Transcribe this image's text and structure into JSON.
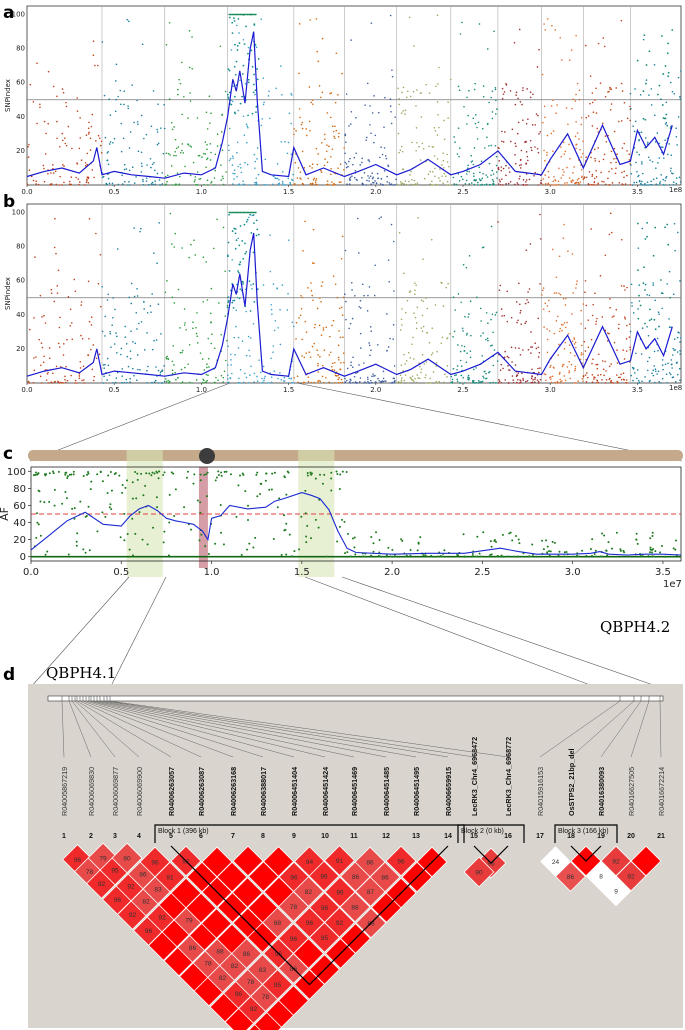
{
  "panel_labels": {
    "a": "a",
    "b": "b",
    "c": "c",
    "d": "d"
  },
  "chart_data": [
    {
      "panel": "a",
      "type": "scatter",
      "ylabel": "SNPindex",
      "ylim": [
        0,
        105
      ],
      "xlim": [
        0,
        3.75
      ],
      "x_ticks": [
        "0.0",
        "0.5",
        "1.0",
        "1.5",
        "2.0",
        "2.5",
        "3.0",
        "3.5"
      ],
      "y_ticks": [
        "20",
        "40",
        "60",
        "80",
        "100"
      ],
      "x_exponent_label": "1e8",
      "threshold": 50,
      "chromosome_boundaries": [
        0.43,
        0.79,
        1.15,
        1.53,
        1.82,
        2.12,
        2.43,
        2.7,
        2.95,
        3.19,
        3.46
      ],
      "line_series": {
        "x": [
          0,
          0.1,
          0.2,
          0.3,
          0.38,
          0.4,
          0.43,
          0.5,
          0.6,
          0.7,
          0.79,
          0.9,
          1.0,
          1.08,
          1.12,
          1.15,
          1.18,
          1.2,
          1.22,
          1.25,
          1.28,
          1.3,
          1.32,
          1.35,
          1.4,
          1.5,
          1.53,
          1.6,
          1.7,
          1.82,
          1.9,
          2.0,
          2.12,
          2.2,
          2.3,
          2.43,
          2.5,
          2.6,
          2.7,
          2.8,
          2.95,
          3.0,
          3.1,
          3.19,
          3.3,
          3.4,
          3.46,
          3.5,
          3.55,
          3.6,
          3.65,
          3.7
        ],
        "y": [
          5,
          8,
          10,
          7,
          14,
          22,
          6,
          8,
          6,
          5,
          4,
          7,
          6,
          10,
          25,
          40,
          62,
          55,
          67,
          48,
          80,
          90,
          50,
          8,
          6,
          5,
          22,
          6,
          10,
          5,
          8,
          12,
          6,
          9,
          15,
          6,
          8,
          12,
          20,
          8,
          6,
          15,
          30,
          10,
          35,
          12,
          14,
          32,
          22,
          28,
          18,
          35
        ]
      }
    },
    {
      "panel": "b",
      "type": "scatter",
      "ylabel": "SNPindex",
      "ylim": [
        0,
        105
      ],
      "xlim": [
        0,
        3.75
      ],
      "x_ticks": [
        "0.0",
        "0.5",
        "1.0",
        "1.5",
        "2.0",
        "2.5",
        "3.0",
        "3.5"
      ],
      "y_ticks": [
        "20",
        "40",
        "60",
        "80",
        "100"
      ],
      "x_exponent_label": "1e8",
      "threshold": 50,
      "chromosome_boundaries": [
        0.43,
        0.79,
        1.15,
        1.53,
        1.82,
        2.12,
        2.43,
        2.7,
        2.95,
        3.19,
        3.46
      ],
      "line_series": {
        "x": [
          0,
          0.1,
          0.2,
          0.3,
          0.38,
          0.4,
          0.43,
          0.5,
          0.6,
          0.7,
          0.79,
          0.9,
          1.0,
          1.08,
          1.12,
          1.15,
          1.18,
          1.2,
          1.22,
          1.25,
          1.28,
          1.3,
          1.32,
          1.35,
          1.4,
          1.5,
          1.53,
          1.6,
          1.7,
          1.82,
          1.9,
          2.0,
          2.12,
          2.2,
          2.3,
          2.43,
          2.5,
          2.6,
          2.7,
          2.8,
          2.95,
          3.0,
          3.1,
          3.19,
          3.3,
          3.4,
          3.46,
          3.5,
          3.55,
          3.6,
          3.65,
          3.7
        ],
        "y": [
          4,
          7,
          9,
          6,
          12,
          20,
          5,
          7,
          6,
          5,
          4,
          6,
          5,
          9,
          22,
          38,
          58,
          52,
          64,
          45,
          78,
          88,
          48,
          7,
          5,
          4,
          20,
          5,
          9,
          4,
          7,
          11,
          5,
          8,
          14,
          5,
          7,
          11,
          18,
          7,
          5,
          14,
          28,
          9,
          33,
          11,
          13,
          30,
          20,
          26,
          16,
          33
        ]
      }
    },
    {
      "panel": "c",
      "type": "scatter",
      "ylabel": "AF",
      "ylim": [
        -5,
        105
      ],
      "xlim": [
        0,
        3.6
      ],
      "x_ticks": [
        "0.0",
        "0.5",
        "1.0",
        "1.5",
        "2.0",
        "2.5",
        "3.0",
        "3.5"
      ],
      "y_ticks": [
        "0",
        "20",
        "40",
        "60",
        "80",
        "100"
      ],
      "x_exponent_label": "1e7",
      "threshold": 50,
      "highlight_regions": [
        [
          0.53,
          0.73
        ],
        [
          1.48,
          1.68
        ]
      ],
      "centromere_region": [
        0.93,
        0.98
      ],
      "line_series": {
        "x": [
          0,
          0.1,
          0.2,
          0.3,
          0.4,
          0.5,
          0.55,
          0.6,
          0.65,
          0.7,
          0.75,
          0.8,
          0.85,
          0.9,
          0.95,
          0.98,
          1.0,
          1.05,
          1.1,
          1.2,
          1.3,
          1.35,
          1.4,
          1.5,
          1.55,
          1.6,
          1.65,
          1.7,
          1.75,
          1.8,
          2.0,
          2.2,
          2.4,
          2.6,
          2.7,
          2.8,
          3.0,
          3.1,
          3.15,
          3.2,
          3.3,
          3.4,
          3.5,
          3.6
        ],
        "y": [
          8,
          25,
          42,
          52,
          38,
          36,
          48,
          56,
          60,
          54,
          45,
          42,
          40,
          38,
          30,
          20,
          45,
          48,
          60,
          56,
          58,
          65,
          68,
          75,
          72,
          68,
          55,
          30,
          10,
          5,
          3,
          4,
          4,
          10,
          6,
          3,
          3,
          4,
          6,
          3,
          2,
          3,
          3,
          2
        ]
      }
    },
    {
      "panel": "d",
      "type": "heatmap",
      "qtl_labels": [
        "QBPH4.1",
        "QBPH4.2"
      ],
      "markers": [
        {
          "name": "R04005867219",
          "bold": false
        },
        {
          "name": "R04006069830",
          "bold": false
        },
        {
          "name": "R04006069877",
          "bold": false
        },
        {
          "name": "R04006069900",
          "bold": false
        },
        {
          "name": "R04006263057",
          "bold": true
        },
        {
          "name": "R04006263087",
          "bold": true
        },
        {
          "name": "R04006263168",
          "bold": true
        },
        {
          "name": "R04006388017",
          "bold": true
        },
        {
          "name": "R04006451404",
          "bold": true
        },
        {
          "name": "R04006451424",
          "bold": true
        },
        {
          "name": "R04006451469",
          "bold": true
        },
        {
          "name": "R04006451485",
          "bold": true
        },
        {
          "name": "R04006451495",
          "bold": true
        },
        {
          "name": "R04006659915",
          "bold": true
        },
        {
          "name": "LecRK3_Chr4_6968472",
          "bold": true
        },
        {
          "name": "LecRK3_Chr4_6968772",
          "bold": true
        },
        {
          "name": "R04015916153",
          "bold": false
        },
        {
          "name": "OsSTPS2_21bp_del",
          "bold": true
        },
        {
          "name": "R04016380093",
          "bold": true
        },
        {
          "name": "R04016627505",
          "bold": false
        },
        {
          "name": "R04016672214",
          "bold": false
        }
      ],
      "indices": [
        "1",
        "2",
        "3",
        "4",
        "5",
        "6",
        "7",
        "8",
        "9",
        "10",
        "11",
        "12",
        "13",
        "14",
        "15",
        "16",
        "17",
        "18",
        "19",
        "20",
        "21"
      ],
      "blocks": [
        {
          "label": "Block 1 (396 kb)",
          "start": 5,
          "end": 14
        },
        {
          "label": "Block 2 (0 kb)",
          "start": 15,
          "end": 16
        },
        {
          "label": "Block 3 (166 kb)",
          "start": 18,
          "end": 19
        }
      ],
      "ld_values_group1": {
        "1-2": "96",
        "2-3": "79",
        "3-4": "80",
        "4-5": "96",
        "5-6": "92",
        "9-10": "94",
        "10-11": "91",
        "11-12": "86",
        "12-13": "96",
        "1-3": "78",
        "2-4": "95",
        "3-5": "86",
        "4-6": "91",
        "8-10": "96",
        "9-11": "96",
        "10-12": "86",
        "11-13": "86",
        "1-4": "92",
        "2-5": "92",
        "3-6": "83",
        "8-11": "82",
        "9-12": "96",
        "10-13": "87",
        "1-5": "96",
        "2-6": "82",
        "7-11": "78",
        "8-12": "96",
        "9-13": "88",
        "1-6": "92",
        "2-7": "92",
        "3-8": "79",
        "6-11": "88",
        "7-12": "96",
        "8-13": "92",
        "9-14": "88",
        "1-7": "96",
        "6-12": "96",
        "7-13": "95",
        "2-9": "86",
        "3-10": "88",
        "4-11": "86",
        "5-12": "96",
        "2-10": "78",
        "3-11": "82",
        "4-12": "83",
        "5-13": "86",
        "2-11": "82",
        "3-12": "78",
        "4-13": "95",
        "2-12": "96",
        "3-13": "78",
        "2-13": "92"
      },
      "ld_values_group2": {
        "15-16": "96",
        "15-17": "90"
      },
      "ld_values_group3": {
        "17-18": "24",
        "18-19": "",
        "19-20": "92",
        "20-21": "",
        "17-19": "86",
        "18-20": "8",
        "19-21": "92",
        "18-21": "9"
      }
    }
  ]
}
